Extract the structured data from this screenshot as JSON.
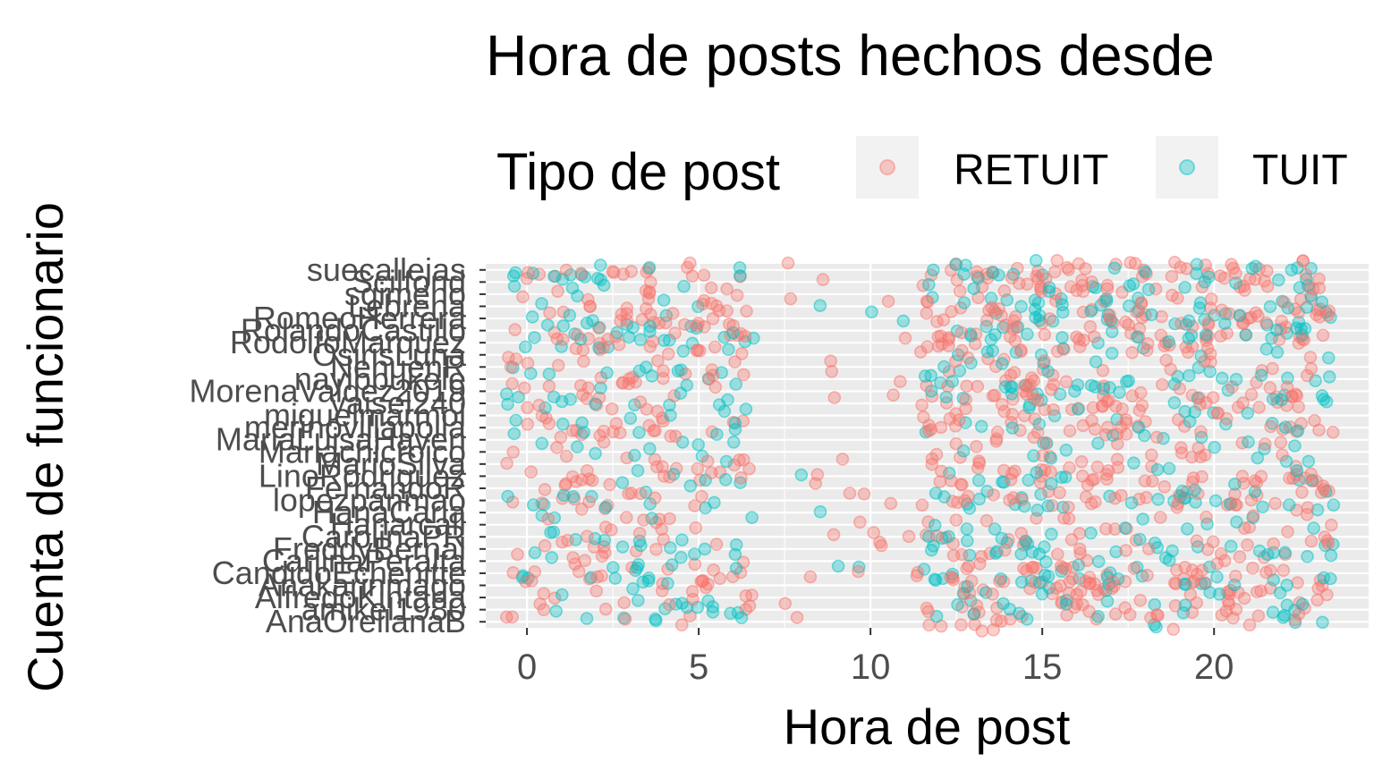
{
  "chart_data": {
    "type": "scatter",
    "title": "Hora de posts hechos desde",
    "xlabel": "Hora de post",
    "ylabel": "Cuenta de funcionario",
    "xlim": [
      -1.2,
      24.5
    ],
    "xticks": [
      0,
      5,
      10,
      15,
      20
    ],
    "grid": true,
    "legend": {
      "title": "Tipo de post",
      "placement": "top",
      "entries": [
        {
          "name": "RETUIT",
          "color": "#F8766D"
        },
        {
          "name": "TUIT",
          "color": "#00BFC4"
        }
      ]
    },
    "categories": [
      "AnaOrellanaB",
      "amikel1980",
      "AlfredoKintana",
      "Anakarinmago",
      "CandidoEchenitte",
      "CarlinaPeralta",
      "FreddyBernal",
      "CarolinaPR",
      "Hanarcall",
      "HanaCarla",
      "lopezpanmao",
      "FernandoR",
      "LinoRodriguez",
      "MarioSilva",
      "Mariachicroico",
      "MariaLuisaHaven",
      "merinovillapolla",
      "miguelmarmol",
      "yaisel240",
      "MorenaValdez2019",
      "nayibbukele",
      "NehuenR",
      "OsirisLuna",
      "RodolfoMarquez",
      "RolandoCastillo",
      "RomeoHerrera",
      "Lebrena",
      "sgimeno",
      "Scilfond",
      "suecallejas"
    ],
    "series": [
      {
        "name": "RETUIT",
        "color": "#F8766D"
      },
      {
        "name": "TUIT",
        "color": "#00BFC4"
      }
    ],
    "point_alpha": 0.35,
    "active_hours": "0-7 y 11.5-23.5"
  }
}
